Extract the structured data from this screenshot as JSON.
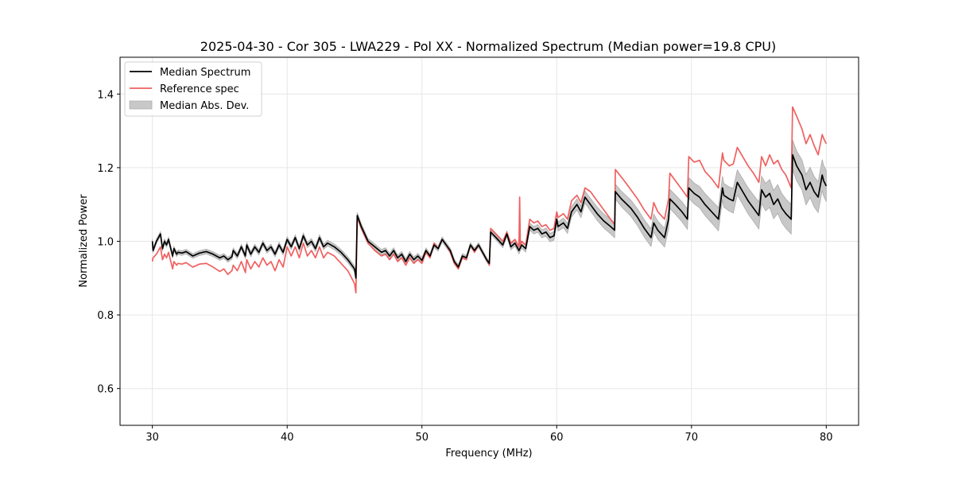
{
  "chart_data": {
    "type": "line",
    "title": "2025-04-30 - Cor 305 - LWA229 - Pol XX - Normalized Spectrum (Median power=19.8 CPU)",
    "xlabel": "Frequency (MHz)",
    "ylabel": "Normalized Power",
    "xlim": [
      27.6,
      82.4
    ],
    "ylim": [
      0.5,
      1.5
    ],
    "xticks": [
      30,
      40,
      50,
      60,
      70,
      80
    ],
    "xtick_labels": [
      "30",
      "40",
      "50",
      "60",
      "70",
      "80"
    ],
    "yticks": [
      0.6,
      0.8,
      1.0,
      1.2,
      1.4
    ],
    "ytick_labels": [
      "0.6",
      "0.8",
      "1.0",
      "1.2",
      "1.4"
    ],
    "grid": true,
    "legend_position": "top-left",
    "legend": [
      {
        "label": "Median Spectrum",
        "kind": "line",
        "color": "#000000"
      },
      {
        "label": "Reference spec",
        "kind": "line",
        "color": "#f06060"
      },
      {
        "label": "Median Abs. Dev.",
        "kind": "patch",
        "color": "#c8c8c8"
      }
    ],
    "series": [
      {
        "name": "Median Spectrum",
        "color": "#000000",
        "x": [
          30.0,
          30.05,
          30.3,
          30.6,
          30.75,
          30.9,
          31.05,
          31.2,
          31.5,
          31.6,
          31.8,
          31.9,
          32.2,
          32.5,
          33.0,
          33.5,
          34.0,
          34.5,
          35.0,
          35.3,
          35.6,
          35.9,
          36.0,
          36.3,
          36.6,
          36.9,
          37.0,
          37.3,
          37.6,
          37.9,
          38.2,
          38.5,
          38.8,
          39.1,
          39.4,
          39.7,
          40.0,
          40.3,
          40.6,
          40.9,
          41.2,
          41.5,
          41.8,
          42.1,
          42.4,
          42.7,
          43.0,
          43.5,
          44.0,
          44.5,
          45.0,
          45.1,
          45.2,
          45.5,
          46.0,
          46.5,
          47.0,
          47.3,
          47.6,
          47.9,
          48.2,
          48.5,
          48.8,
          49.1,
          49.4,
          49.7,
          50.0,
          50.3,
          50.6,
          50.9,
          51.2,
          51.5,
          51.8,
          52.1,
          52.4,
          52.7,
          53.0,
          53.3,
          53.6,
          53.9,
          54.2,
          54.5,
          54.8,
          55.0,
          55.1,
          55.5,
          56.0,
          56.3,
          56.6,
          56.9,
          57.2,
          57.4,
          57.7,
          58.0,
          58.3,
          58.6,
          58.9,
          59.2,
          59.5,
          59.8,
          60.0,
          60.1,
          60.5,
          60.8,
          61.1,
          61.5,
          61.8,
          62.1,
          62.5,
          63.0,
          63.5,
          64.0,
          64.3,
          64.35,
          64.8,
          65.5,
          66.0,
          66.5,
          67.0,
          67.2,
          67.5,
          68.0,
          68.3,
          68.4,
          68.8,
          69.3,
          69.7,
          69.8,
          70.2,
          70.6,
          71.0,
          71.5,
          72.0,
          72.3,
          72.4,
          72.8,
          73.1,
          73.4,
          73.8,
          74.2,
          74.6,
          75.0,
          75.2,
          75.5,
          75.8,
          76.1,
          76.4,
          76.7,
          77.0,
          77.4,
          77.5,
          77.8,
          78.2,
          78.5,
          78.8,
          79.1,
          79.4,
          79.7,
          79.8,
          80.0
        ],
        "y": [
          1.0,
          0.975,
          1.0,
          1.02,
          0.98,
          1.0,
          0.99,
          1.005,
          0.96,
          0.98,
          0.965,
          0.97,
          0.968,
          0.972,
          0.96,
          0.968,
          0.972,
          0.965,
          0.955,
          0.96,
          0.95,
          0.958,
          0.975,
          0.96,
          0.985,
          0.96,
          0.99,
          0.965,
          0.985,
          0.97,
          0.995,
          0.975,
          0.985,
          0.965,
          0.99,
          0.97,
          1.005,
          0.985,
          1.01,
          0.98,
          1.015,
          0.99,
          1.0,
          0.98,
          1.01,
          0.985,
          0.995,
          0.985,
          0.97,
          0.95,
          0.925,
          0.9,
          1.07,
          1.04,
          1.0,
          0.985,
          0.97,
          0.975,
          0.96,
          0.975,
          0.955,
          0.965,
          0.945,
          0.965,
          0.95,
          0.96,
          0.948,
          0.975,
          0.96,
          0.99,
          0.98,
          1.005,
          0.99,
          0.975,
          0.945,
          0.93,
          0.96,
          0.955,
          0.99,
          0.975,
          0.99,
          0.97,
          0.95,
          0.94,
          1.025,
          1.01,
          0.99,
          1.02,
          0.985,
          0.995,
          0.975,
          0.99,
          0.98,
          1.04,
          1.03,
          1.035,
          1.02,
          1.025,
          1.01,
          1.015,
          1.06,
          1.04,
          1.05,
          1.035,
          1.08,
          1.1,
          1.08,
          1.12,
          1.1,
          1.075,
          1.055,
          1.04,
          1.03,
          1.135,
          1.115,
          1.09,
          1.065,
          1.035,
          1.01,
          1.05,
          1.03,
          1.01,
          1.06,
          1.115,
          1.1,
          1.08,
          1.06,
          1.145,
          1.13,
          1.12,
          1.1,
          1.08,
          1.06,
          1.145,
          1.125,
          1.115,
          1.11,
          1.16,
          1.135,
          1.11,
          1.09,
          1.07,
          1.14,
          1.12,
          1.13,
          1.1,
          1.115,
          1.09,
          1.075,
          1.06,
          1.235,
          1.205,
          1.18,
          1.14,
          1.16,
          1.135,
          1.12,
          1.18,
          1.165,
          1.15
        ]
      },
      {
        "name": "Reference spec",
        "color": "#f06060",
        "x": [
          30.0,
          30.05,
          30.3,
          30.6,
          30.75,
          30.9,
          31.05,
          31.2,
          31.5,
          31.6,
          31.8,
          31.9,
          32.2,
          32.5,
          33.0,
          33.5,
          34.0,
          34.5,
          35.0,
          35.3,
          35.6,
          35.9,
          36.0,
          36.3,
          36.6,
          36.9,
          37.0,
          37.3,
          37.6,
          37.9,
          38.2,
          38.5,
          38.8,
          39.1,
          39.4,
          39.7,
          40.0,
          40.3,
          40.6,
          40.9,
          41.2,
          41.5,
          41.8,
          42.1,
          42.4,
          42.7,
          43.0,
          43.5,
          44.0,
          44.5,
          45.0,
          45.1,
          45.2,
          45.5,
          46.0,
          46.5,
          47.0,
          47.3,
          47.6,
          47.9,
          48.2,
          48.5,
          48.8,
          49.1,
          49.4,
          49.7,
          50.0,
          50.3,
          50.6,
          50.9,
          51.2,
          51.5,
          51.8,
          52.1,
          52.4,
          52.7,
          53.0,
          53.3,
          53.6,
          53.9,
          54.2,
          54.5,
          54.8,
          55.0,
          55.1,
          55.5,
          56.0,
          56.3,
          56.6,
          56.9,
          57.2,
          57.25,
          57.3,
          57.4,
          57.7,
          58.0,
          58.3,
          58.6,
          58.9,
          59.2,
          59.5,
          59.8,
          60.0,
          60.1,
          60.5,
          60.8,
          61.1,
          61.5,
          61.8,
          62.1,
          62.5,
          63.0,
          63.5,
          64.0,
          64.3,
          64.35,
          65.0,
          65.5,
          66.0,
          66.5,
          67.0,
          67.2,
          67.5,
          68.0,
          68.3,
          68.4,
          68.8,
          69.3,
          69.7,
          69.8,
          70.2,
          70.6,
          71.0,
          71.5,
          72.0,
          72.3,
          72.4,
          72.8,
          73.1,
          73.4,
          73.8,
          74.2,
          74.6,
          75.0,
          75.2,
          75.5,
          75.8,
          76.1,
          76.4,
          76.7,
          77.0,
          77.4,
          77.5,
          77.8,
          78.2,
          78.5,
          78.8,
          79.1,
          79.4,
          79.7,
          79.8,
          80.0
        ],
        "y": [
          0.945,
          0.955,
          0.965,
          0.985,
          0.95,
          0.965,
          0.955,
          0.97,
          0.925,
          0.945,
          0.935,
          0.94,
          0.938,
          0.942,
          0.93,
          0.938,
          0.94,
          0.93,
          0.918,
          0.925,
          0.91,
          0.92,
          0.935,
          0.92,
          0.945,
          0.915,
          0.95,
          0.925,
          0.945,
          0.93,
          0.955,
          0.935,
          0.945,
          0.92,
          0.95,
          0.93,
          0.985,
          0.96,
          0.985,
          0.955,
          0.995,
          0.96,
          0.975,
          0.955,
          0.985,
          0.955,
          0.97,
          0.96,
          0.94,
          0.92,
          0.885,
          0.86,
          1.065,
          1.035,
          0.995,
          0.975,
          0.96,
          0.965,
          0.95,
          0.965,
          0.945,
          0.955,
          0.935,
          0.955,
          0.94,
          0.95,
          0.94,
          0.97,
          0.955,
          0.995,
          0.98,
          1.005,
          0.99,
          0.97,
          0.94,
          0.925,
          0.955,
          0.95,
          0.99,
          0.97,
          0.99,
          0.97,
          0.95,
          0.935,
          1.035,
          1.02,
          1.0,
          1.025,
          0.995,
          1.005,
          0.985,
          1.12,
          0.99,
          1.0,
          0.99,
          1.06,
          1.05,
          1.055,
          1.04,
          1.045,
          1.03,
          1.035,
          1.08,
          1.065,
          1.075,
          1.06,
          1.11,
          1.125,
          1.105,
          1.145,
          1.135,
          1.11,
          1.085,
          1.06,
          1.045,
          1.195,
          1.165,
          1.14,
          1.115,
          1.085,
          1.06,
          1.105,
          1.08,
          1.06,
          1.115,
          1.185,
          1.165,
          1.14,
          1.12,
          1.23,
          1.215,
          1.22,
          1.19,
          1.17,
          1.145,
          1.24,
          1.22,
          1.205,
          1.21,
          1.255,
          1.23,
          1.205,
          1.185,
          1.16,
          1.23,
          1.205,
          1.235,
          1.21,
          1.22,
          1.195,
          1.18,
          1.145,
          1.365,
          1.34,
          1.305,
          1.265,
          1.29,
          1.26,
          1.235,
          1.29,
          1.28,
          1.265
        ]
      },
      {
        "name": "Median Abs. Dev.",
        "kind": "band",
        "color": "#c8c8c8",
        "description": "shaded band around Median Spectrum; half-width grows with frequency",
        "halfwidth_at_x": {
          "x": [
            30,
            45,
            55,
            60,
            64,
            70,
            77,
            80
          ],
          "y": [
            0.006,
            0.008,
            0.006,
            0.012,
            0.02,
            0.028,
            0.04,
            0.042
          ]
        }
      }
    ]
  }
}
